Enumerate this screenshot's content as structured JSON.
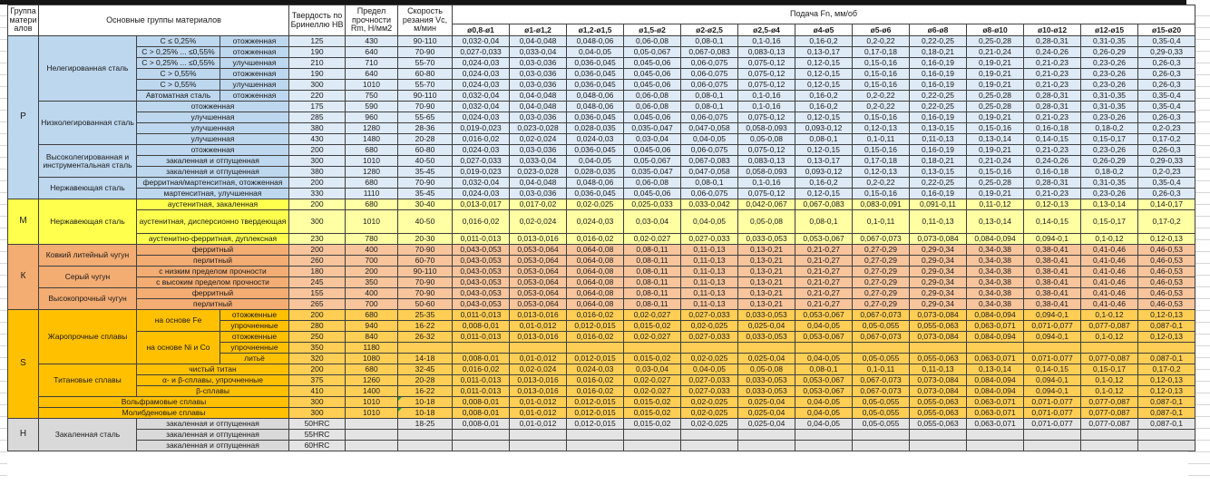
{
  "header": {
    "col_group": "Группа материалов",
    "col_main": "Основные группы материалов",
    "col_hb": "Твердость по Бринеллю HB",
    "col_rm": "Предел прочности Rm, Н/мм2",
    "col_vc": "Скорость резания Vc, м/мин",
    "col_feed": "Подача Fn, мм/об",
    "diameters": [
      "ø0,8-ø1",
      "ø1-ø1,2",
      "ø1,2-ø1,5",
      "ø1,5-ø2",
      "ø2-ø2,5",
      "ø2,5-ø4",
      "ø4-ø5",
      "ø5-ø6",
      "ø6-ø8",
      "ø8-ø10",
      "ø10-ø12",
      "ø12-ø15",
      "ø15-ø20"
    ]
  },
  "colors": {
    "group_P_label": "#BDD7EE",
    "group_P_data": "#DEEAF6",
    "group_M_label": "#FFFF4D",
    "group_M_data": "#FFFFA3",
    "group_K_label": "#F3AC72",
    "group_K_data": "#F7C49C",
    "group_S_label": "#FFC000",
    "group_S_data": "#FFCE54",
    "group_H_label": "#D9D9D9",
    "group_H_data": "#E4E4E4",
    "note_marker": "#2f9e44"
  },
  "feed_patterns": {
    "A": [
      "0,032-0,04",
      "0,04-0,048",
      "0,048-0,06",
      "0,06-0,08",
      "0,08-0,1",
      "0,1-0,16",
      "0,16-0,2",
      "0,2-0,22",
      "0,22-0,25",
      "0,25-0,28",
      "0,28-0,31",
      "0,31-0,35",
      "0,35-0,4"
    ],
    "B": [
      "0,027-0,033",
      "0,033-0,04",
      "0,04-0,05",
      "0,05-0,067",
      "0,067-0,083",
      "0,083-0,13",
      "0,13-0,17",
      "0,17-0,18",
      "0,18-0,21",
      "0,21-0,24",
      "0,24-0,26",
      "0,26-0,29",
      "0,29-0,33"
    ],
    "C": [
      "0,024-0,03",
      "0,03-0,036",
      "0,036-0,045",
      "0,045-0,06",
      "0,06-0,075",
      "0,075-0,12",
      "0,12-0,15",
      "0,15-0,16",
      "0,16-0,19",
      "0,19-0,21",
      "0,21-0,23",
      "0,23-0,26",
      "0,26-0,3"
    ],
    "D": [
      "0,019-0,023",
      "0,023-0,028",
      "0,028-0,035",
      "0,035-0,047",
      "0,047-0,058",
      "0,058-0,093",
      "0,093-0,12",
      "0,12-0,13",
      "0,13-0,15",
      "0,15-0,16",
      "0,16-0,18",
      "0,18-0,2",
      "0,2-0,23"
    ],
    "E": [
      "0,016-0,02",
      "0,02-0,024",
      "0,024-0,03",
      "0,03-0,04",
      "0,04-0,05",
      "0,05-0,08",
      "0,08-0,1",
      "0,1-0,11",
      "0,11-0,13",
      "0,13-0,14",
      "0,14-0,15",
      "0,15-0,17",
      "0,17-0,2"
    ],
    "F": [
      "0,013-0,017",
      "0,017-0,02",
      "0,02-0,025",
      "0,025-0,033",
      "0,033-0,042",
      "0,042-0,067",
      "0,067-0,083",
      "0,083-0,091",
      "0,091-0,11",
      "0,11-0,12",
      "0,12-0,13",
      "0,13-0,14",
      "0,14-0,17"
    ],
    "G": [
      "0,011-0,013",
      "0,013-0,016",
      "0,016-0,02",
      "0,02-0,027",
      "0,027-0,033",
      "0,033-0,053",
      "0,053-0,067",
      "0,067-0,073",
      "0,073-0,084",
      "0,084-0,094",
      "0,094-0,1",
      "0,1-0,12",
      "0,12-0,13"
    ],
    "H": [
      "0,043-0,053",
      "0,053-0,064",
      "0,064-0,08",
      "0,08-0,11",
      "0,11-0,13",
      "0,13-0,21",
      "0,21-0,27",
      "0,27-0,29",
      "0,29-0,34",
      "0,34-0,38",
      "0,38-0,41",
      "0,41-0,46",
      "0,46-0,53"
    ],
    "I": [
      "0,008-0,01",
      "0,01-0,012",
      "0,012-0,015",
      "0,015-0,02",
      "0,02-0,025",
      "0,025-0,04",
      "0,04-0,05",
      "0,05-0,055",
      "0,055-0,063",
      "0,063-0,071",
      "0,071-0,077",
      "0,077-0,087",
      "0,087-0,1"
    ],
    "empty": [
      "",
      "",
      "",
      "",
      "",
      "",
      "",
      "",
      "",
      "",
      "",
      "",
      ""
    ]
  },
  "rows": [
    {
      "grp": "P",
      "pre": [
        {
          "t": "P",
          "rs": 15,
          "c": "c1"
        },
        {
          "t": "Нелегированная сталь",
          "rs": 6,
          "c": "c2"
        },
        {
          "t": "C ≤ 0,25%",
          "c": "c3"
        },
        {
          "t": "отожженная",
          "c": "c4"
        }
      ],
      "hb": "125",
      "rm": "430",
      "vc": "90-110",
      "f": "A"
    },
    {
      "grp": "P",
      "pre": [
        {
          "t": "C > 0,25% ... ≤0,55%",
          "c": "c3"
        },
        {
          "t": "отожженная",
          "c": "c4"
        }
      ],
      "hb": "190",
      "rm": "640",
      "vc": "70-90",
      "f": "B"
    },
    {
      "grp": "P",
      "pre": [
        {
          "t": "C > 0,25% ... ≤0,55%",
          "c": "c3"
        },
        {
          "t": "улучшенная",
          "c": "c4"
        }
      ],
      "hb": "210",
      "rm": "710",
      "vc": "55-70",
      "f": "C"
    },
    {
      "grp": "P",
      "pre": [
        {
          "t": "C > 0,55%",
          "c": "c3"
        },
        {
          "t": "отожженная",
          "c": "c4"
        }
      ],
      "hb": "190",
      "rm": "640",
      "vc": "60-80",
      "f": "C"
    },
    {
      "grp": "P",
      "pre": [
        {
          "t": "C > 0,55%",
          "c": "c3"
        },
        {
          "t": "улучшенная",
          "c": "c4"
        }
      ],
      "hb": "300",
      "rm": "1010",
      "vc": "55-70",
      "f": "C"
    },
    {
      "grp": "P",
      "pre": [
        {
          "t": "Автоматная сталь",
          "c": "c3"
        },
        {
          "t": "отожженная",
          "c": "c4"
        }
      ],
      "hb": "220",
      "rm": "750",
      "vc": "90-110",
      "f": "A"
    },
    {
      "grp": "P",
      "pre": [
        {
          "t": "Низколегированная сталь",
          "rs": 4,
          "c": "c2"
        },
        {
          "t": "отожженная",
          "cs": 2,
          "c": "c34"
        }
      ],
      "hb": "175",
      "rm": "590",
      "vc": "70-90",
      "f": "A"
    },
    {
      "grp": "P",
      "pre": [
        {
          "t": "улучшенная",
          "cs": 2,
          "c": "c34"
        }
      ],
      "hb": "285",
      "rm": "960",
      "vc": "55-65",
      "f": "C"
    },
    {
      "grp": "P",
      "pre": [
        {
          "t": "улучшенная",
          "cs": 2,
          "c": "c34"
        }
      ],
      "hb": "380",
      "rm": "1280",
      "vc": "28-36",
      "f": "D"
    },
    {
      "grp": "P",
      "pre": [
        {
          "t": "улучшенная",
          "cs": 2,
          "c": "c34"
        }
      ],
      "hb": "430",
      "rm": "1480",
      "vc": "20-28",
      "f": "E"
    },
    {
      "grp": "P",
      "pre": [
        {
          "t": "Высоколегированная и инструментальная сталь",
          "rs": 3,
          "c": "c2"
        },
        {
          "t": "отожженная",
          "cs": 2,
          "c": "c34"
        }
      ],
      "hb": "200",
      "rm": "680",
      "vc": "60-80",
      "f": "C"
    },
    {
      "grp": "P",
      "pre": [
        {
          "t": "закаленная и отпущенная",
          "cs": 2,
          "c": "c34"
        }
      ],
      "hb": "300",
      "rm": "1010",
      "vc": "40-50",
      "f": "B"
    },
    {
      "grp": "P",
      "pre": [
        {
          "t": "закаленная и отпущенная",
          "cs": 2,
          "c": "c34"
        }
      ],
      "hb": "380",
      "rm": "1280",
      "vc": "35-45",
      "f": "D"
    },
    {
      "grp": "P",
      "pre": [
        {
          "t": "Нержавеющая сталь",
          "rs": 2,
          "c": "c2"
        },
        {
          "t": "ферритная/мартенситная, отожженная",
          "cs": 2,
          "c": "c34"
        }
      ],
      "hb": "200",
      "rm": "680",
      "vc": "70-90",
      "f": "A"
    },
    {
      "grp": "P",
      "pre": [
        {
          "t": "мартенситная, улучшенная",
          "cs": 2,
          "c": "c34"
        }
      ],
      "hb": "330",
      "rm": "1110",
      "vc": "35-45",
      "f": "C"
    },
    {
      "grp": "M",
      "pre": [
        {
          "t": "M",
          "rs": 3,
          "c": "c1"
        },
        {
          "t": "Нержавеющая сталь",
          "rs": 3,
          "c": "c2"
        },
        {
          "t": "аустенитная, закаленная",
          "cs": 2,
          "c": "c34"
        }
      ],
      "hb": "200",
      "rm": "680",
      "vc": "30-40",
      "f": "F"
    },
    {
      "grp": "M",
      "tall": 1,
      "pre": [
        {
          "t": "аустенитная, дисперсионно твердеющая",
          "cs": 2,
          "c": "c34"
        }
      ],
      "hb": "300",
      "rm": "1010",
      "vc": "40-50",
      "f": "E"
    },
    {
      "grp": "M",
      "pre": [
        {
          "t": "аустенитно-ферритная, дуплексная",
          "cs": 2,
          "c": "c34"
        }
      ],
      "hb": "230",
      "rm": "780",
      "vc": "20-30",
      "f": "G"
    },
    {
      "grp": "K",
      "pre": [
        {
          "t": "К",
          "rs": 6,
          "c": "c1"
        },
        {
          "t": "Ковкий литейный чугун",
          "rs": 2,
          "c": "c2"
        },
        {
          "t": "ферритный",
          "cs": 2,
          "c": "c34"
        }
      ],
      "hb": "200",
      "rm": "400",
      "vc": "70-90",
      "f": "H"
    },
    {
      "grp": "K",
      "pre": [
        {
          "t": "перлитный",
          "cs": 2,
          "c": "c34"
        }
      ],
      "hb": "260",
      "rm": "700",
      "vc": "60-70",
      "f": "H"
    },
    {
      "grp": "K",
      "pre": [
        {
          "t": "Серый чугун",
          "rs": 2,
          "c": "c2"
        },
        {
          "t": "с низким пределом прочности",
          "cs": 2,
          "c": "c34"
        }
      ],
      "hb": "180",
      "rm": "200",
      "vc": "90-110",
      "f": "H"
    },
    {
      "grp": "K",
      "pre": [
        {
          "t": "с высоким пределом прочности",
          "cs": 2,
          "c": "c34"
        }
      ],
      "hb": "245",
      "rm": "350",
      "vc": "70-90",
      "f": "H"
    },
    {
      "grp": "K",
      "pre": [
        {
          "t": "Высокопрочный чугун",
          "rs": 2,
          "c": "c2"
        },
        {
          "t": "ферритный",
          "cs": 2,
          "c": "c34"
        }
      ],
      "hb": "155",
      "rm": "400",
      "vc": "70-90",
      "f": "H"
    },
    {
      "grp": "K",
      "pre": [
        {
          "t": "перлитный",
          "cs": 2,
          "c": "c34"
        }
      ],
      "hb": "265",
      "rm": "700",
      "vc": "50-60",
      "f": "H"
    },
    {
      "grp": "S",
      "pre": [
        {
          "t": "S",
          "rs": 10,
          "c": "c1"
        },
        {
          "t": "Жаропрочные сплавы",
          "rs": 5,
          "c": "c2"
        },
        {
          "t": "на основе Fe",
          "rs": 2,
          "c": "c3"
        },
        {
          "t": "отожженные",
          "c": "c4"
        }
      ],
      "hb": "200",
      "rm": "680",
      "vc": "25-35",
      "f": "G"
    },
    {
      "grp": "S",
      "pre": [
        {
          "t": "упрочненные",
          "c": "c4"
        }
      ],
      "hb": "280",
      "rm": "940",
      "vc": "16-22",
      "f": "I"
    },
    {
      "grp": "S",
      "pre": [
        {
          "t": "на основе Ni и Co",
          "rs": 3,
          "c": "c3"
        },
        {
          "t": "отожженные",
          "c": "c4"
        }
      ],
      "hb": "250",
      "rm": "840",
      "vc": "26-32",
      "f": "G"
    },
    {
      "grp": "S",
      "pre": [
        {
          "t": "упрочненные",
          "c": "c4"
        }
      ],
      "hb": "350",
      "rm": "1180",
      "vc": "",
      "f": "empty"
    },
    {
      "grp": "S",
      "pre": [
        {
          "t": "литьё",
          "c": "c4"
        }
      ],
      "hb": "320",
      "rm": "1080",
      "vc": "14-18",
      "f": "I"
    },
    {
      "grp": "S",
      "pre": [
        {
          "t": "Титановые сплавы",
          "rs": 3,
          "c": "c2"
        },
        {
          "t": "чистый титан",
          "cs": 2,
          "c": "c34"
        }
      ],
      "hb": "200",
      "rm": "680",
      "vc": "32-45",
      "f": "E"
    },
    {
      "grp": "S",
      "pre": [
        {
          "t": "α- и β-сплавы, упрочненные",
          "cs": 2,
          "c": "c34"
        }
      ],
      "hb": "375",
      "rm": "1260",
      "vc": "20-28",
      "f": "G"
    },
    {
      "grp": "S",
      "pre": [
        {
          "t": "β-сплавы",
          "cs": 2,
          "c": "c34"
        }
      ],
      "hb": "410",
      "rm": "1400",
      "vc": "16-22",
      "f": "G"
    },
    {
      "grp": "S",
      "pre": [
        {
          "t": "Вольфрамовые сплавы",
          "cs": 3,
          "c": "c2"
        }
      ],
      "hb": "300",
      "rm": "1010",
      "vc": "10-18",
      "note": 1,
      "f": "I"
    },
    {
      "grp": "S",
      "pre": [
        {
          "t": "Молибденовые сплавы",
          "cs": 3,
          "c": "c2"
        }
      ],
      "hb": "300",
      "rm": "1010",
      "vc": "10-18",
      "note": 1,
      "f": "I"
    },
    {
      "grp": "H",
      "pre": [
        {
          "t": "Н",
          "rs": 3,
          "c": "c1"
        },
        {
          "t": "Закаленная сталь",
          "rs": 3,
          "c": "c2"
        },
        {
          "t": "закаленная и отпущенная",
          "cs": 2,
          "c": "c34"
        }
      ],
      "hb": "50HRC",
      "rm": "",
      "vc": "18-25",
      "f": "I"
    },
    {
      "grp": "H",
      "pre": [
        {
          "t": "закаленная и отпущенная",
          "cs": 2,
          "c": "c34"
        }
      ],
      "hb": "55HRC",
      "rm": "",
      "vc": "",
      "f": "empty"
    },
    {
      "grp": "H",
      "pre": [
        {
          "t": "закаленная и отпущенная",
          "cs": 2,
          "c": "c34"
        }
      ],
      "hb": "60HRC",
      "rm": "",
      "vc": "",
      "f": "empty"
    }
  ]
}
